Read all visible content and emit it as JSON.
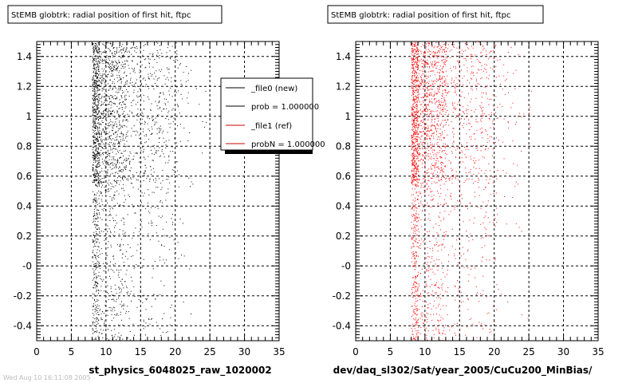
{
  "footer_text": "Wed Aug 10 16:11:08 2005",
  "legend": {
    "entries": [
      {
        "label": "_file0 (new)",
        "color": "#000000"
      },
      {
        "label": "prob = 1.000000",
        "color": "#000000"
      },
      {
        "label": "_file1 (ref)",
        "color": "#cc0000"
      },
      {
        "label": "probN = 1.000000",
        "color": "#cc0000"
      }
    ]
  },
  "chart_data": [
    {
      "type": "scatter",
      "title": "StEMB globtrk: radial position of first hit, ftpc",
      "xlabel": "st_physics_6048025_raw_1020002",
      "ylabel": "",
      "xlim": [
        0,
        35
      ],
      "ylim": [
        -0.5,
        1.5
      ],
      "x_ticks": [
        0,
        5,
        10,
        15,
        20,
        25,
        30,
        35
      ],
      "y_ticks": [
        -0.4,
        -0.2,
        0,
        0.2,
        0.4,
        0.6,
        0.8,
        1,
        1.2,
        1.4
      ],
      "y_tick_labels": [
        "-0.4",
        "-0.2",
        "-0",
        "0.2",
        "0.4",
        "0.6",
        "0.8",
        "1",
        "1.2",
        "1.4"
      ],
      "grid": true,
      "legend_position": "top-right",
      "marker_color": "#000000",
      "x_range_of_points": [
        8,
        25
      ],
      "dense_x_band": [
        8,
        9
      ],
      "dense_y_range": [
        0.55,
        1.5
      ],
      "series": [
        {
          "values": []
        }
      ]
    },
    {
      "type": "scatter",
      "title": "StEMB globtrk: radial position of first hit, ftpc",
      "xlabel": "dev/daq_sl302/Sat/year_2005/CuCu200_MinBias/",
      "ylabel": "",
      "xlim": [
        0,
        35
      ],
      "ylim": [
        -0.5,
        1.5
      ],
      "x_ticks": [
        0,
        5,
        10,
        15,
        20,
        25,
        30,
        35
      ],
      "y_ticks": [
        -0.4,
        -0.2,
        0,
        0.2,
        0.4,
        0.6,
        0.8,
        1,
        1.2,
        1.4
      ],
      "y_tick_labels": [
        "-0.4",
        "-0.2",
        "-0",
        "0.2",
        "0.4",
        "0.6",
        "0.8",
        "1",
        "1.2",
        "1.4"
      ],
      "grid": true,
      "legend_position": "none",
      "marker_color": "#ff0000",
      "x_range_of_points": [
        8,
        26
      ],
      "dense_x_band": [
        8,
        9
      ],
      "dense_y_range": [
        0.55,
        1.5
      ],
      "series": [
        {
          "values": []
        }
      ]
    }
  ]
}
